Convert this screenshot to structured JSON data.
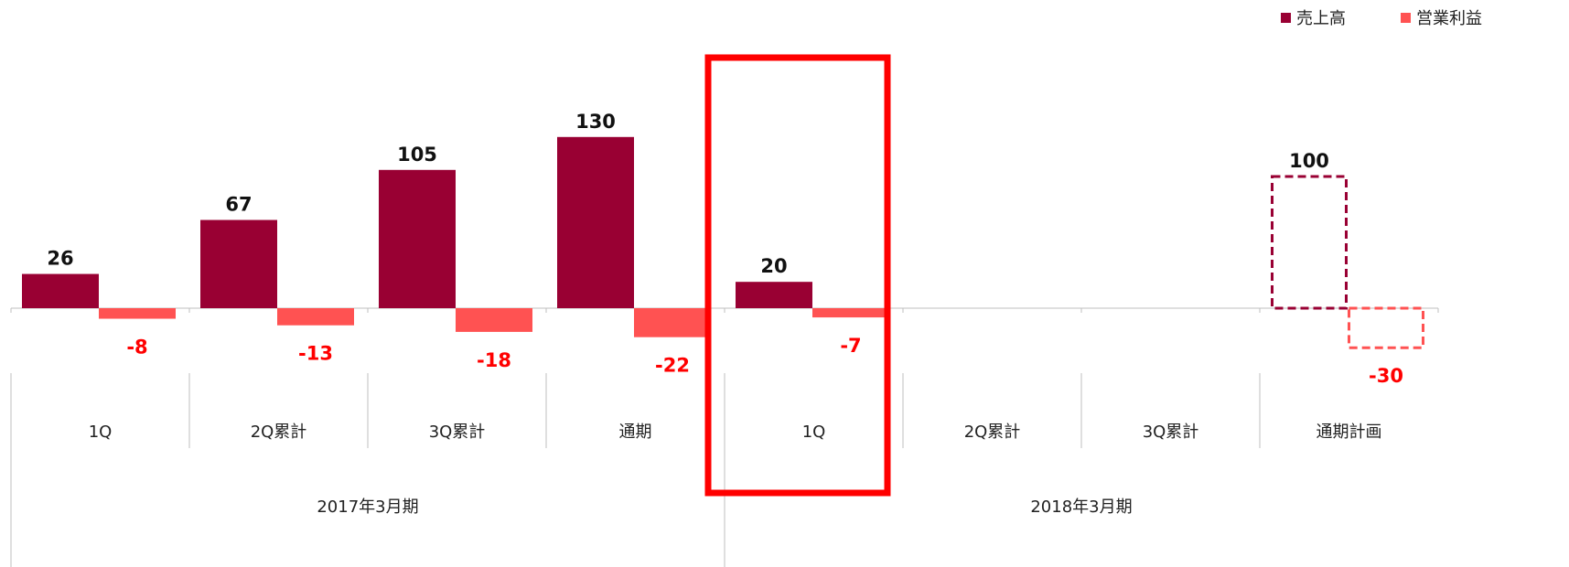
{
  "chart_data": {
    "type": "bar",
    "title": "",
    "xlabel": "",
    "ylabel": "",
    "categories": [
      "1Q",
      "2Q累計",
      "3Q累計",
      "通期",
      "1Q",
      "2Q累計",
      "3Q累計",
      "通期計画"
    ],
    "groups": [
      {
        "label": "2017年3月期",
        "categories": [
          "1Q",
          "2Q累計",
          "3Q累計",
          "通期"
        ]
      },
      {
        "label": "2018年3月期",
        "categories": [
          "1Q",
          "2Q累計",
          "3Q累計",
          "通期計画"
        ]
      }
    ],
    "series": [
      {
        "name": "売上高",
        "color": "#990033",
        "values": [
          26,
          67,
          105,
          130,
          20,
          null,
          null,
          100
        ],
        "planned": [
          false,
          false,
          false,
          false,
          false,
          false,
          false,
          true
        ]
      },
      {
        "name": "営業利益",
        "color": "#FF5252",
        "values": [
          -8,
          -13,
          -18,
          -22,
          -7,
          null,
          null,
          -30
        ],
        "planned": [
          false,
          false,
          false,
          false,
          false,
          false,
          false,
          true
        ]
      }
    ],
    "value_labels": {
      "売上高": [
        "26",
        "67",
        "105",
        "130",
        "20",
        "",
        "",
        "100"
      ],
      "営業利益": [
        "-8",
        "-13",
        "-18",
        "-22",
        "-7",
        "",
        "",
        "-30"
      ]
    },
    "label_colors": {
      "positive": "#111111",
      "negative": "#FF0000"
    },
    "highlight": {
      "category_index": 4,
      "color": "#FF0000"
    },
    "legend_position": "top-right",
    "ylim": [
      -35,
      160
    ]
  }
}
